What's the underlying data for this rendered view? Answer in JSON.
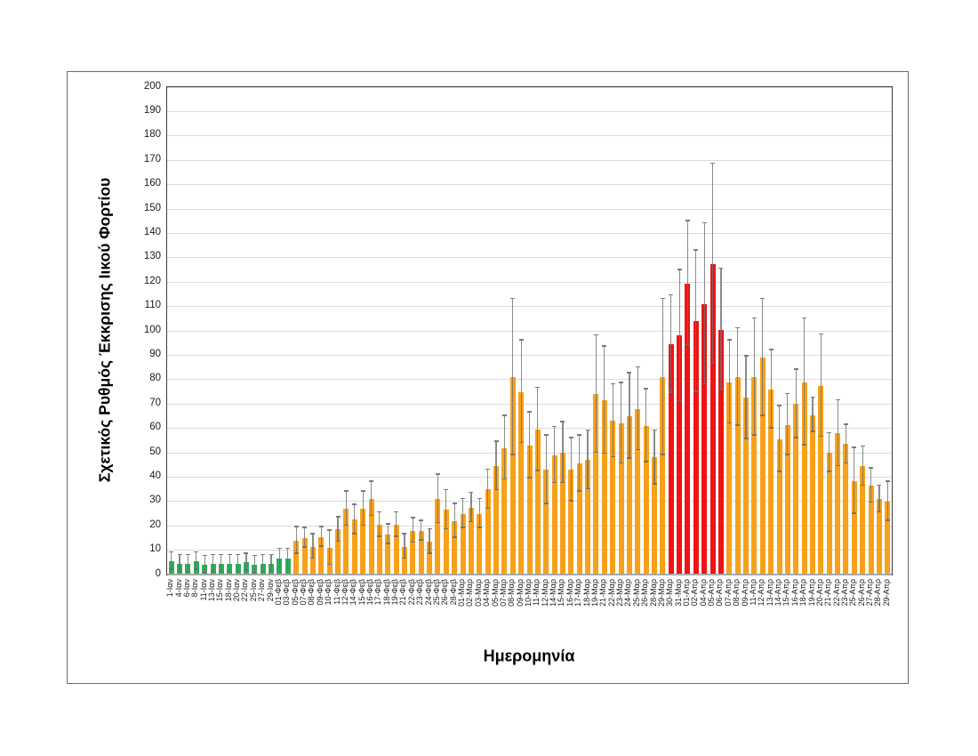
{
  "figure": {
    "y_axis_title": "Σχετικός Ρυθμός Έκκρισης Ιικού Φορτίου",
    "x_axis_title": "Ημερομηνία"
  },
  "chart_data": {
    "type": "bar",
    "title": "",
    "xlabel": "Ημερομηνία",
    "ylabel": "Σχετικός Ρυθμός Έκκρισης Ιικού Φορτίου",
    "ylim": [
      0,
      200
    ],
    "y_ticks": [
      0,
      10,
      20,
      30,
      40,
      50,
      60,
      70,
      80,
      90,
      100,
      110,
      120,
      130,
      140,
      150,
      160,
      170,
      180,
      190,
      200
    ],
    "grid": "horizontal",
    "legend": "none",
    "error_bars_style": "symmetric, gray caps",
    "categories": [
      "1-Ιαν",
      "4-Ιαν",
      "6-Ιαν",
      "8-Ιαν",
      "11-Ιαν",
      "13-Ιαν",
      "15-Ιαν",
      "18-Ιαν",
      "20-Ιαν",
      "22-Ιαν",
      "25-Ιαν",
      "27-Ιαν",
      "29-Ιαν",
      "01-Φεβ",
      "03-Φεβ",
      "05-Φεβ",
      "07-Φεβ",
      "08-Φεβ",
      "09-Φεβ",
      "10-Φεβ",
      "11-Φεβ",
      "12-Φεβ",
      "14-Φεβ",
      "15-Φεβ",
      "16-Φεβ",
      "17-Φεβ",
      "18-Φεβ",
      "19-Φεβ",
      "21-Φεβ",
      "22-Φεβ",
      "23-Φεβ",
      "24-Φεβ",
      "25-Φεβ",
      "26-Φεβ",
      "28-Φεβ",
      "01-Μαρ",
      "02-Μαρ",
      "03-Μαρ",
      "04-Μαρ",
      "05-Μαρ",
      "07-Μαρ",
      "08-Μαρ",
      "09-Μαρ",
      "10-Μαρ",
      "11-Μαρ",
      "12-Μαρ",
      "14-Μαρ",
      "15-Μαρ",
      "16-Μαρ",
      "17-Μαρ",
      "18-Μαρ",
      "19-Μαρ",
      "21-Μαρ",
      "22-Μαρ",
      "23-Μαρ",
      "24-Μαρ",
      "25-Μαρ",
      "26-Μαρ",
      "28-Μαρ",
      "29-Μαρ",
      "30-Μαρ",
      "31-Μαρ",
      "01-Απρ",
      "02-Απρ",
      "04-Απρ",
      "05-Απρ",
      "06-Απρ",
      "07-Απρ",
      "08-Απρ",
      "09-Απρ",
      "11-Απρ",
      "12-Απρ",
      "13-Απρ",
      "14-Απρ",
      "15-Απρ",
      "16-Απρ",
      "18-Απρ",
      "19-Απρ",
      "20-Απρ",
      "21-Απρ",
      "22-Απρ",
      "23-Απρ",
      "25-Απρ",
      "26-Απρ",
      "27-Απρ",
      "28-Απρ",
      "29-Απρ"
    ],
    "values": [
      5.5,
      4.5,
      4.5,
      5.5,
      4,
      4.5,
      4.5,
      4.5,
      4.5,
      5,
      4,
      4.5,
      4.5,
      6.5,
      6.5,
      14,
      15,
      11.5,
      15.5,
      11,
      18.5,
      27,
      22.5,
      27,
      31,
      20.5,
      16.5,
      20.5,
      11.5,
      18,
      18,
      13.5,
      31,
      26.5,
      22,
      25,
      27.5,
      25,
      35,
      44.5,
      52,
      81,
      75,
      53,
      59.5,
      43,
      49,
      50,
      43,
      45.5,
      47,
      74,
      71.5,
      63,
      62,
      65,
      68,
      61,
      48,
      81,
      94.5,
      98,
      119.5,
      104,
      111,
      127.5,
      100.5,
      79,
      81,
      72.5,
      81,
      89,
      76,
      55.5,
      61.5,
      70,
      79,
      65.5,
      77.5,
      50,
      58,
      53.5,
      38.5,
      44.5,
      36.5,
      31,
      30
    ],
    "errors": [
      3.5,
      3.5,
      3.5,
      3.5,
      3.5,
      3.5,
      3.5,
      3.5,
      3.5,
      3.5,
      3.5,
      3.5,
      3.5,
      4,
      4,
      5.5,
      4,
      5,
      4,
      7,
      5,
      7,
      6,
      7,
      7,
      5,
      4,
      5,
      5,
      5,
      4,
      5,
      10,
      8,
      7,
      6,
      6,
      6,
      8,
      10,
      13,
      32,
      21,
      13.5,
      17,
      14,
      11.5,
      12.5,
      13,
      11.5,
      12,
      24,
      22,
      15,
      16.5,
      17.5,
      17,
      15,
      11,
      32,
      20,
      27,
      25.5,
      29,
      33,
      41,
      25,
      17,
      20,
      17,
      24,
      24,
      16,
      13.5,
      12.5,
      14,
      26,
      7,
      21,
      8,
      13.5,
      8,
      13.5,
      8,
      7,
      5.5,
      8
    ],
    "color_segments": [
      {
        "start": 0,
        "end": 14,
        "color": "green"
      },
      {
        "start": 15,
        "end": 59,
        "color": "orange"
      },
      {
        "start": 60,
        "end": 66,
        "color": "red"
      },
      {
        "start": 67,
        "end": 86,
        "color": "orange"
      }
    ],
    "palette": {
      "green": "#2dae5c",
      "orange": "#f7a11a",
      "red": "#ef1313",
      "error_bar": "#6e6e6e",
      "gridline": "#dcdcdc"
    }
  }
}
